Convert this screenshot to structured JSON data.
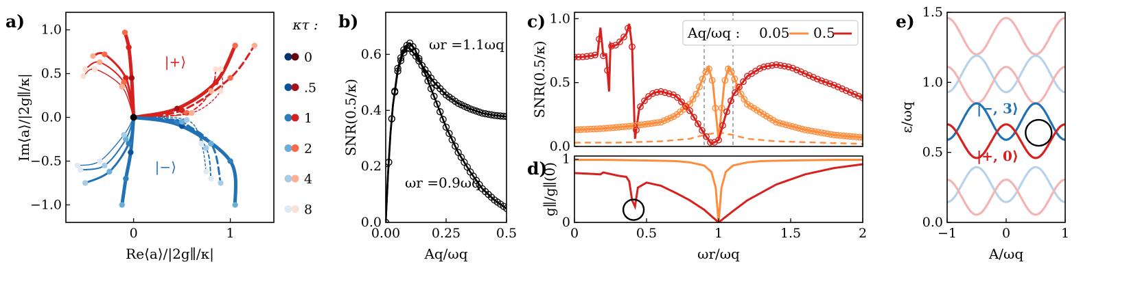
{
  "panel_labels": [
    "a)",
    "b)",
    "c)",
    "d)",
    "e)"
  ],
  "colors": {
    "red": "#d7211e",
    "blue": "#2171b5",
    "orange": "#fd8d3c",
    "light_red": "#f4b4b4",
    "light_blue": "#b7d3ea",
    "black": "#000000",
    "gray_line": "#808080"
  },
  "chart_data": [
    {
      "id": "a",
      "type": "scatter",
      "xlabel": "Re⟨a⟩/|2g∥/κ|",
      "ylabel": "Im⟨a⟩/|2g∥/κ|",
      "xlim": [
        -0.7,
        1.45
      ],
      "ylim": [
        -1.2,
        1.2
      ],
      "xticks": [
        "0",
        "1"
      ],
      "yticks": [
        "−1.0",
        "−0.5",
        "0.0",
        "0.5",
        "1.0"
      ],
      "state_labels": [
        "|+⟩",
        "|−⟩"
      ],
      "legend": {
        "title": "κτ :",
        "entries": [
          "0",
          ".5",
          "1",
          "2",
          "4",
          "8"
        ],
        "red_shades": [
          "#67000d",
          "#a50f15",
          "#d7211e",
          "#f76b4a",
          "#fcae91",
          "#fde0d2"
        ],
        "blue_shades": [
          "#08306b",
          "#08519c",
          "#2f7ebc",
          "#6baed6",
          "#a8cce4",
          "#deebf7"
        ]
      },
      "trajectories_upper_left": [
        {
          "kt": "0",
          "points": [
            [
              0,
              0
            ],
            [
              -0.02,
              0.45
            ],
            [
              -0.05,
              0.8
            ],
            [
              -0.09,
              0.97
            ]
          ]
        },
        {
          "kt": ".5",
          "points": [
            [
              0,
              0
            ],
            [
              -0.08,
              0.45
            ],
            [
              -0.3,
              0.72
            ],
            [
              -0.42,
              0.7
            ]
          ]
        },
        {
          "kt": "1",
          "points": [
            [
              0,
              0
            ],
            [
              -0.1,
              0.4
            ],
            [
              -0.35,
              0.63
            ],
            [
              -0.5,
              0.55
            ]
          ]
        },
        {
          "kt": "2",
          "points": [
            [
              0,
              0
            ],
            [
              -0.12,
              0.35
            ],
            [
              -0.4,
              0.55
            ],
            [
              -0.52,
              0.47
            ]
          ]
        }
      ],
      "trajectories_upper_right": [
        {
          "kt": "0",
          "points": [
            [
              0,
              0
            ],
            [
              0.45,
              0.1
            ],
            [
              0.85,
              0.4
            ],
            [
              1.05,
              0.82
            ]
          ]
        },
        {
          "kt": ".5",
          "points": [
            [
              0,
              0
            ],
            [
              0.5,
              0.08
            ],
            [
              1.0,
              0.45
            ],
            [
              1.25,
              0.82
            ]
          ]
        },
        {
          "kt": "1",
          "points": [
            [
              0,
              0
            ],
            [
              0.55,
              0.05
            ],
            [
              0.8,
              0.3
            ],
            [
              0.85,
              0.55
            ]
          ]
        },
        {
          "kt": "2",
          "points": [
            [
              0,
              0
            ],
            [
              0.6,
              0.05
            ],
            [
              0.9,
              0.3
            ],
            [
              0.9,
              0.55
            ]
          ]
        }
      ],
      "trajectories_lower_left": [
        {
          "kt": "0",
          "points": [
            [
              0,
              0
            ],
            [
              -0.03,
              -0.4
            ],
            [
              -0.08,
              -0.7
            ],
            [
              -0.12,
              -1.0
            ]
          ]
        },
        {
          "kt": ".5",
          "points": [
            [
              0,
              0
            ],
            [
              -0.05,
              -0.3
            ],
            [
              -0.25,
              -0.62
            ],
            [
              -0.5,
              -0.75
            ]
          ]
        },
        {
          "kt": "1",
          "points": [
            [
              0,
              0
            ],
            [
              -0.08,
              -0.25
            ],
            [
              -0.3,
              -0.55
            ],
            [
              -0.55,
              -0.6
            ]
          ]
        },
        {
          "kt": "2",
          "points": [
            [
              0,
              0
            ],
            [
              -0.1,
              -0.2
            ],
            [
              -0.35,
              -0.5
            ],
            [
              -0.58,
              -0.55
            ]
          ]
        }
      ],
      "trajectories_lower_right": [
        {
          "kt": "0",
          "points": [
            [
              0,
              0
            ],
            [
              0.5,
              -0.1
            ],
            [
              1.0,
              -0.5
            ],
            [
              1.05,
              -1.0
            ]
          ]
        },
        {
          "kt": ".5",
          "points": [
            [
              0,
              0
            ],
            [
              0.45,
              -0.05
            ],
            [
              0.8,
              -0.3
            ],
            [
              0.9,
              -0.75
            ]
          ]
        },
        {
          "kt": "1",
          "points": [
            [
              0,
              0
            ],
            [
              0.5,
              -0.05
            ],
            [
              0.75,
              -0.35
            ],
            [
              0.8,
              -0.7
            ]
          ]
        },
        {
          "kt": "2",
          "points": [
            [
              0,
              0
            ],
            [
              0.55,
              -0.03
            ],
            [
              0.7,
              -0.3
            ],
            [
              0.75,
              -0.62
            ]
          ]
        }
      ]
    },
    {
      "id": "b",
      "type": "line",
      "xlabel": "Aq/ωq",
      "ylabel": "SNR(0.5/κ)",
      "xlim": [
        0,
        0.5
      ],
      "ylim": [
        0,
        0.75
      ],
      "xticks": [
        "0.00",
        "0.25",
        "0.5"
      ],
      "yticks": [
        "0.0",
        "0.2",
        "0.4",
        "0.6"
      ],
      "annotations": [
        "ωr =1.1ωq",
        "ωr =0.9ωq"
      ],
      "series": [
        {
          "name": "ωr =1.1ωq",
          "x": [
            0,
            0.01,
            0.02,
            0.03,
            0.05,
            0.07,
            0.09,
            0.1,
            0.12,
            0.15,
            0.2,
            0.25,
            0.3,
            0.35,
            0.4,
            0.45,
            0.5
          ],
          "y": [
            0,
            0.18,
            0.32,
            0.42,
            0.54,
            0.6,
            0.625,
            0.62,
            0.6,
            0.56,
            0.5,
            0.455,
            0.425,
            0.405,
            0.39,
            0.382,
            0.378
          ]
        },
        {
          "name": "ωr =0.9ωq",
          "x": [
            0,
            0.01,
            0.02,
            0.03,
            0.05,
            0.07,
            0.09,
            0.1,
            0.12,
            0.15,
            0.2,
            0.25,
            0.3,
            0.35,
            0.4,
            0.45,
            0.5
          ],
          "y": [
            0,
            0.18,
            0.32,
            0.42,
            0.55,
            0.61,
            0.635,
            0.64,
            0.62,
            0.56,
            0.45,
            0.34,
            0.25,
            0.18,
            0.12,
            0.08,
            0.05
          ]
        }
      ]
    },
    {
      "id": "c",
      "type": "line",
      "ylabel": "SNR(0.5/κ)",
      "xlim": [
        0,
        2
      ],
      "ylim": [
        0,
        1.05
      ],
      "yticks": [
        "0.0",
        "0.5",
        "1.0"
      ],
      "legend": {
        "title": "Aq/ωq :",
        "entries": [
          "0.05",
          "0.5"
        ]
      },
      "vlines": [
        0.9,
        1.1
      ],
      "series": [
        {
          "name": "0.05",
          "x": [
            0,
            0.2,
            0.4,
            0.6,
            0.7,
            0.8,
            0.85,
            0.9,
            0.93,
            0.96,
            1.0,
            1.04,
            1.07,
            1.1,
            1.15,
            1.2,
            1.4,
            1.6,
            1.8,
            2.0
          ],
          "y": [
            0.13,
            0.14,
            0.16,
            0.19,
            0.24,
            0.33,
            0.42,
            0.56,
            0.62,
            0.5,
            0.05,
            0.5,
            0.62,
            0.56,
            0.42,
            0.33,
            0.19,
            0.13,
            0.09,
            0.07
          ]
        },
        {
          "name": "0.5",
          "x": [
            0,
            0.05,
            0.12,
            0.16,
            0.18,
            0.2,
            0.22,
            0.24,
            0.25,
            0.26,
            0.3,
            0.36,
            0.38,
            0.4,
            0.42,
            0.45,
            0.5,
            0.55,
            0.6,
            0.7,
            0.8,
            0.9,
            0.95,
            1.0,
            1.05,
            1.1,
            1.2,
            1.3,
            1.4,
            1.5,
            1.6,
            1.7,
            1.8,
            1.9,
            2.0
          ],
          "y": [
            0.7,
            0.7,
            0.71,
            0.72,
            0.93,
            0.71,
            0.72,
            0.43,
            0.8,
            0.78,
            0.8,
            0.88,
            0.96,
            0.78,
            0.06,
            0.3,
            0.38,
            0.42,
            0.43,
            0.4,
            0.28,
            0.1,
            0.02,
            0.05,
            0.25,
            0.4,
            0.55,
            0.62,
            0.64,
            0.62,
            0.57,
            0.52,
            0.48,
            0.43,
            0.38
          ]
        },
        {
          "name": "dashed",
          "x": [
            0,
            0.3,
            0.6,
            0.8,
            0.9,
            1.0,
            1.1,
            1.2,
            1.4,
            1.7,
            2.0
          ],
          "y": [
            0.03,
            0.03,
            0.04,
            0.06,
            0.09,
            0.11,
            0.09,
            0.06,
            0.04,
            0.03,
            0.02
          ]
        }
      ]
    },
    {
      "id": "d",
      "type": "line",
      "xlabel": "ωr/ωq",
      "ylabel": "g∥/g∥(0)",
      "xlim": [
        0,
        2
      ],
      "ylim": [
        0,
        1.05
      ],
      "xticks": [
        "0",
        "0.5",
        "1",
        "1.5",
        "2"
      ],
      "yticks": [
        "0",
        "1"
      ],
      "series": [
        {
          "name": "0.05",
          "x": [
            0,
            0.2,
            0.5,
            0.7,
            0.8,
            0.9,
            0.95,
            0.98,
            1.0,
            1.02,
            1.05,
            1.1,
            1.2,
            1.3,
            1.5,
            1.8,
            2.0
          ],
          "y": [
            0.99,
            0.99,
            0.98,
            0.97,
            0.95,
            0.9,
            0.8,
            0.55,
            0.0,
            0.55,
            0.8,
            0.9,
            0.95,
            0.97,
            0.98,
            0.99,
            0.99
          ]
        },
        {
          "name": "0.5",
          "x": [
            0,
            0.1,
            0.18,
            0.2,
            0.3,
            0.36,
            0.38,
            0.4,
            0.42,
            0.44,
            0.5,
            0.6,
            0.7,
            0.8,
            0.9,
            1.0,
            1.1,
            1.2,
            1.4,
            1.6,
            1.8,
            2.0
          ],
          "y": [
            0.78,
            0.77,
            0.76,
            0.79,
            0.74,
            0.72,
            0.65,
            0.35,
            0.25,
            0.55,
            0.63,
            0.58,
            0.47,
            0.35,
            0.2,
            0.0,
            0.18,
            0.35,
            0.6,
            0.76,
            0.86,
            0.92
          ]
        }
      ]
    },
    {
      "id": "e",
      "type": "line",
      "xlabel": "A/ωq",
      "ylabel": "ε/ωq",
      "xlim": [
        -1,
        1
      ],
      "ylim": [
        0,
        1.5
      ],
      "xticks": [
        "−1",
        "0",
        "1"
      ],
      "yticks": [
        "0.0",
        "0.5",
        "1.0",
        "1.5"
      ],
      "state_labels": [
        "|−, 3⟩",
        "|+, 0⟩"
      ]
    }
  ]
}
